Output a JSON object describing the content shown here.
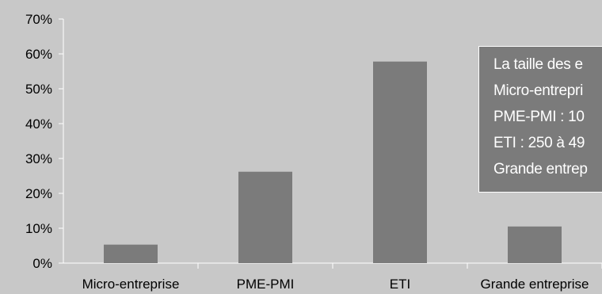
{
  "chart_data": {
    "type": "bar",
    "categories": [
      "Micro-entreprise",
      "PME-PMI",
      "ETI",
      "Grande entreprise"
    ],
    "values": [
      0.053,
      0.262,
      0.578,
      0.105
    ],
    "ylim": [
      0,
      0.7
    ],
    "yticks": [
      "0%",
      "10%",
      "20%",
      "30%",
      "40%",
      "50%",
      "60%",
      "70%"
    ],
    "title": "",
    "xlabel": "",
    "ylabel": "",
    "grid": false,
    "legend": false,
    "colors": {
      "bar": "#7b7b7b",
      "background": "#c8c8c8",
      "axis": "#ffffff"
    }
  },
  "annotation": {
    "lines": [
      "La taille des e",
      "Micro-entrepri",
      "PME-PMI : 10",
      "ETI : 250 à 49",
      "Grande entrep"
    ]
  }
}
